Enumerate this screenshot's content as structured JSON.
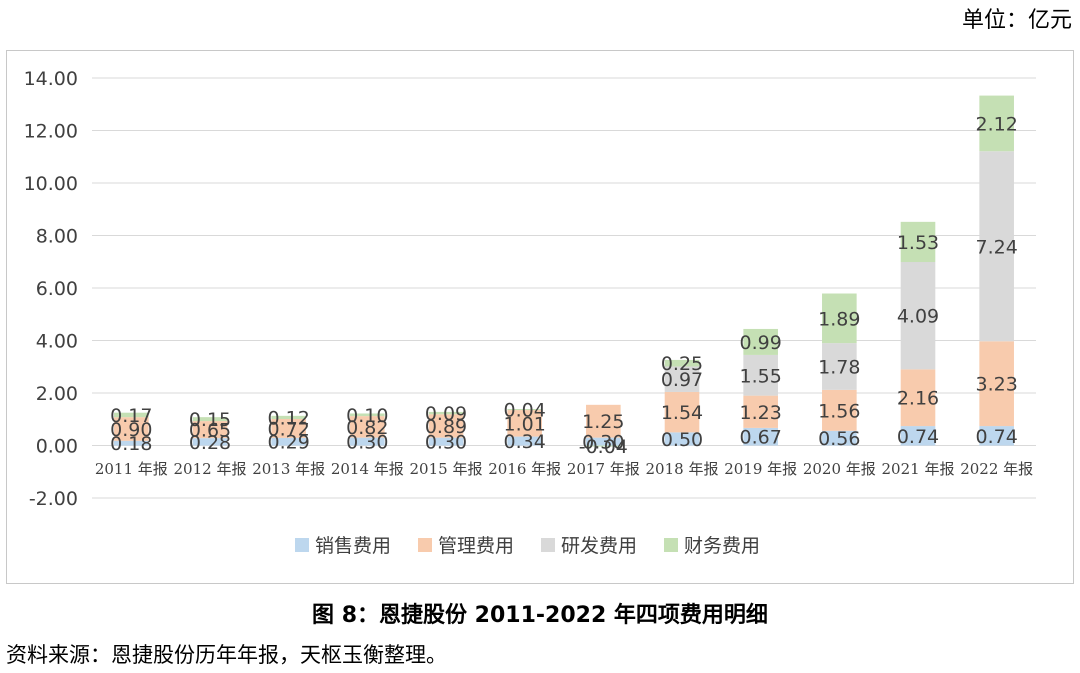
{
  "unit_label": "单位：亿元",
  "figure_title": "图 8：恩捷股份 2011-2022 年四项费用明细",
  "source_text": "资料来源：恩捷股份历年年报，天枢玉衡整理。",
  "chart_data": {
    "type": "bar",
    "stacked": true,
    "title": "",
    "xlabel": "",
    "ylabel": "",
    "ylim": [
      -2,
      14
    ],
    "yticks": [
      "14.00",
      "12.00",
      "10.00",
      "8.00",
      "6.00",
      "4.00",
      "2.00",
      "0.00",
      "-2.00"
    ],
    "grid": true,
    "legend_position": "bottom",
    "categories": [
      "2011 年报",
      "2012 年报",
      "2013 年报",
      "2014 年报",
      "2015 年报",
      "2016 年报",
      "2017 年报",
      "2018 年报",
      "2019 年报",
      "2020 年报",
      "2021 年报",
      "2022 年报"
    ],
    "series": [
      {
        "name": "销售费用",
        "color": "#bdd7ee",
        "values": [
          0.18,
          0.28,
          0.29,
          0.3,
          0.3,
          0.34,
          0.3,
          0.5,
          0.67,
          0.56,
          0.74,
          0.74
        ]
      },
      {
        "name": "管理费用",
        "color": "#f8cbad",
        "values": [
          0.9,
          0.65,
          0.72,
          0.82,
          0.89,
          1.01,
          1.25,
          1.54,
          1.23,
          1.56,
          2.16,
          3.23
        ]
      },
      {
        "name": "研发费用",
        "color": "#d9d9d9",
        "values": [
          null,
          null,
          null,
          null,
          null,
          null,
          null,
          0.97,
          1.55,
          1.78,
          4.09,
          7.24
        ]
      },
      {
        "name": "财务费用",
        "color": "#c5e0b4",
        "values": [
          0.17,
          0.15,
          0.12,
          0.1,
          0.09,
          0.04,
          -0.04,
          0.25,
          0.99,
          1.89,
          1.53,
          2.12
        ]
      }
    ],
    "labels": [
      [
        "0.18",
        "0.28",
        "0.29",
        "0.30",
        "0.30",
        "0.34",
        "0.30",
        "0.50",
        "0.67",
        "0.56",
        "0.74",
        "0.74"
      ],
      [
        "0.90",
        "0.65",
        "0.72",
        "0.82",
        "0.89",
        "1.01",
        "1.25",
        "1.54",
        "1.23",
        "1.56",
        "2.16",
        "3.23"
      ],
      [
        "",
        "",
        "",
        "",
        "",
        "",
        "",
        "0.97",
        "1.55",
        "1.78",
        "4.09",
        "7.24"
      ],
      [
        "0.17",
        "0.15",
        "0.12",
        "0.10",
        "0.09",
        "0.04",
        "-0.04",
        "0.25",
        "0.99",
        "1.89",
        "1.53",
        "2.12"
      ]
    ]
  }
}
